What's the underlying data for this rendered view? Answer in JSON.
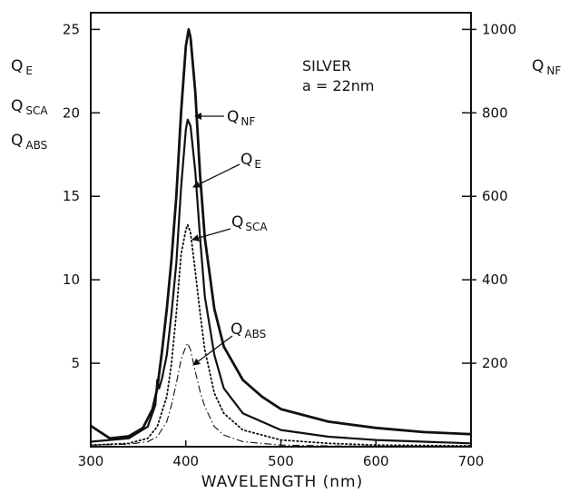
{
  "chart_data": {
    "type": "line",
    "annotation": {
      "line1": "SILVER",
      "line2": "a = 22nm"
    },
    "xlabel": "WAVELENGTH (nm)",
    "xlim": [
      300,
      700
    ],
    "ylim_left": [
      0,
      26
    ],
    "ylim_right": [
      0,
      1040
    ],
    "x_ticks": [
      300,
      400,
      500,
      600,
      700
    ],
    "y_ticks_left": [
      5,
      10,
      15,
      20,
      25
    ],
    "y_ticks_right": [
      200,
      400,
      600,
      800,
      1000
    ],
    "left_axis_labels": [
      {
        "main": "Q",
        "sub": "E"
      },
      {
        "main": "Q",
        "sub": "SCA"
      },
      {
        "main": "Q",
        "sub": "ABS"
      }
    ],
    "right_axis_label": {
      "main": "Q",
      "sub": "NF"
    },
    "series": [
      {
        "name": "NF",
        "axis": "right",
        "style": "solid-thick",
        "x": [
          300,
          320,
          340,
          355,
          365,
          370,
          375,
          380,
          385,
          390,
          395,
          400,
          403,
          405,
          410,
          415,
          420,
          430,
          440,
          460,
          480,
          500,
          550,
          600,
          650,
          700
        ],
        "y": [
          50,
          20,
          25,
          45,
          90,
          140,
          230,
          330,
          450,
          600,
          800,
          960,
          1000,
          980,
          850,
          650,
          500,
          330,
          240,
          160,
          120,
          90,
          60,
          45,
          35,
          30
        ]
      },
      {
        "name": "E",
        "axis": "left",
        "style": "solid",
        "x": [
          300,
          340,
          360,
          368,
          370,
          372,
          375,
          380,
          385,
          390,
          395,
          400,
          402,
          405,
          410,
          415,
          420,
          430,
          440,
          460,
          500,
          550,
          600,
          650,
          700
        ],
        "y": [
          0.3,
          0.5,
          1.2,
          2.5,
          4.0,
          3.5,
          4.1,
          5.5,
          8.0,
          11.0,
          15.5,
          19.0,
          19.6,
          19.2,
          16.5,
          12.5,
          9.0,
          5.5,
          3.5,
          2.0,
          1.0,
          0.6,
          0.4,
          0.3,
          0.2
        ]
      },
      {
        "name": "SCA",
        "axis": "left",
        "style": "dotted",
        "x": [
          300,
          340,
          360,
          370,
          380,
          385,
          390,
          395,
          400,
          402,
          405,
          410,
          415,
          420,
          430,
          440,
          460,
          500,
          550,
          600,
          700
        ],
        "y": [
          0.1,
          0.2,
          0.5,
          1.2,
          3.0,
          5.0,
          8.0,
          11.5,
          13.0,
          13.3,
          12.8,
          10.5,
          8.0,
          5.8,
          3.2,
          2.0,
          1.0,
          0.4,
          0.2,
          0.1,
          0.05
        ]
      },
      {
        "name": "ABS",
        "axis": "left",
        "style": "dash-dot",
        "x": [
          300,
          340,
          360,
          370,
          380,
          385,
          390,
          395,
          400,
          402,
          405,
          410,
          415,
          420,
          430,
          440,
          460,
          500,
          550,
          600,
          700
        ],
        "y": [
          0.1,
          0.15,
          0.3,
          0.6,
          1.5,
          2.5,
          3.8,
          5.2,
          6.0,
          6.2,
          5.8,
          4.5,
          3.3,
          2.4,
          1.2,
          0.7,
          0.3,
          0.1,
          0.05,
          0.03,
          0.02
        ]
      }
    ],
    "pointer_labels": [
      {
        "series": "NF",
        "main": "Q",
        "sub": "NF"
      },
      {
        "series": "E",
        "main": "Q",
        "sub": "E"
      },
      {
        "series": "SCA",
        "main": "Q",
        "sub": "SCA"
      },
      {
        "series": "ABS",
        "main": "Q",
        "sub": "ABS"
      }
    ],
    "grid": false,
    "colors": {
      "line": "#111111",
      "background": "#ffffff"
    }
  }
}
